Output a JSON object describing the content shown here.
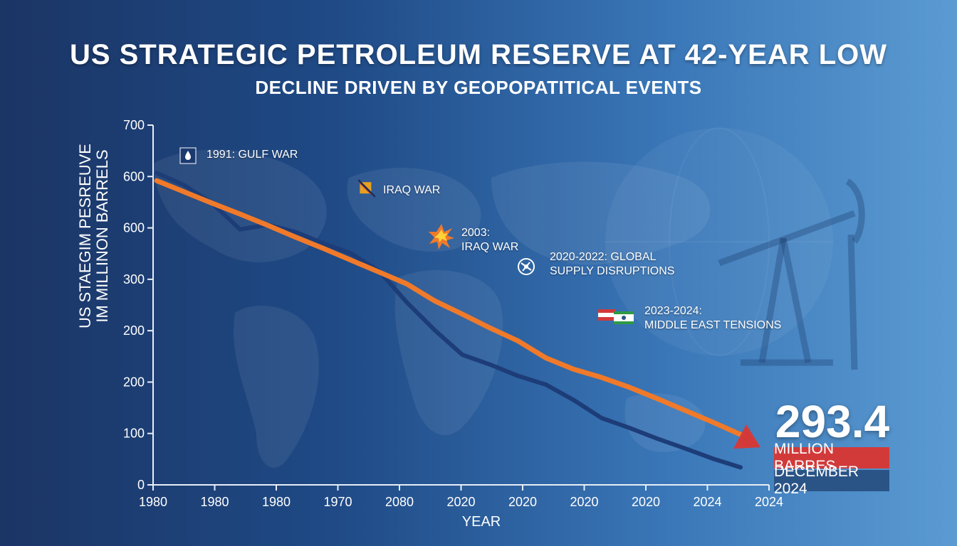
{
  "chart_data": {
    "type": "line",
    "title": "US STRATEGIC PETROLEUM RESERVE AT 42-YEAR LOW",
    "subtitle": "DECLINE DRIVEN BY GEOPOPATITICAL EVENTS",
    "xlabel": "YEAR",
    "ylabel_lines": [
      "US STAEGIM PESREUVE",
      "IM MILLINON BARRELS"
    ],
    "x_tick_labels": [
      "1980",
      "1980",
      "1980",
      "1970",
      "2080",
      "2020",
      "2020",
      "2020",
      "2020",
      "2024",
      "2024"
    ],
    "y_tick_labels": [
      "0",
      "100",
      "200",
      "200",
      "300",
      "600",
      "600",
      "700"
    ],
    "series": [
      {
        "color": "#f07a2a",
        "values": [
          592,
          570,
          548,
          527,
          505,
          482,
          460,
          437,
          414,
          391,
          358,
          332,
          305,
          280,
          247,
          225,
          209,
          190,
          168,
          145,
          122,
          98
        ]
      },
      {
        "color": "#1d3d78",
        "values": [
          607,
          583,
          548,
          497,
          506,
          492,
          470,
          450,
          416,
          355,
          301,
          253,
          234,
          212,
          195,
          165,
          130,
          111,
          90,
          71,
          51,
          34
        ]
      }
    ],
    "annotations": [
      {
        "lines": [
          "1991: GULF WAR"
        ],
        "icon": "oil-drop-icon"
      },
      {
        "lines": [
          "IRAQ WAR"
        ],
        "icon": "crossed-flag-icon"
      },
      {
        "lines": [
          "2003:",
          "IRAQ WAR"
        ],
        "icon": "explosion-icon"
      },
      {
        "lines": [
          "2020-2022: GLOBAL",
          "SUPPLY DISRUPTIONS"
        ],
        "icon": "globe-disruption-icon"
      },
      {
        "lines": [
          "2023-2024:",
          "MIDDLE EAST TENSIONS"
        ],
        "icon": "flags-icon"
      }
    ],
    "callout": {
      "value": "293.4",
      "unit": "MILLION BARRES",
      "date": "DECEMBER 2024"
    },
    "colors": {
      "orange_line": "#f07a2a",
      "navy_line": "#1d3d78",
      "callout_red": "#d23a3a",
      "callout_blue": "#2a5486"
    }
  }
}
